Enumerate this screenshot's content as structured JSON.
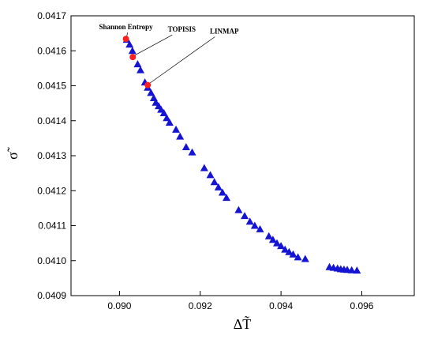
{
  "colors": {
    "marker": "#1414d2",
    "highlight": "#ff2020",
    "axis": "#000000"
  },
  "chart_data": {
    "type": "scatter",
    "title": "",
    "xlabel": "ΔT̃",
    "ylabel": "σ̃",
    "xlim": [
      0.0888,
      0.0973
    ],
    "ylim": [
      0.0409,
      0.0417
    ],
    "grid": false,
    "x_ticks": [
      0.09,
      0.092,
      0.094,
      0.096
    ],
    "x_tick_labels": [
      "0.090",
      "0.092",
      "0.094",
      "0.096"
    ],
    "y_ticks": [
      0.0409,
      0.041,
      0.0411,
      0.0412,
      0.0413,
      0.0414,
      0.0415,
      0.0416,
      0.0417
    ],
    "y_tick_labels": [
      "0.0409",
      "0.0410",
      "0.0411",
      "0.0412",
      "0.0413",
      "0.0414",
      "0.0415",
      "0.0416",
      "0.0417"
    ],
    "series": [
      {
        "marker": "triangle",
        "x": [
          0.09018,
          0.09025,
          0.09032,
          0.09045,
          0.09052,
          0.09063,
          0.0907,
          0.09078,
          0.09085,
          0.0909,
          0.09097,
          0.09103,
          0.0911,
          0.09117,
          0.09124,
          0.0914,
          0.0915,
          0.09165,
          0.0918,
          0.0921,
          0.09225,
          0.09235,
          0.09245,
          0.09255,
          0.09265,
          0.09295,
          0.0931,
          0.09323,
          0.09335,
          0.09348,
          0.0937,
          0.0938,
          0.0939,
          0.094,
          0.0941,
          0.0942,
          0.0943,
          0.09442,
          0.0946,
          0.0952,
          0.0953,
          0.0954,
          0.09548,
          0.09556,
          0.09564,
          0.09575,
          0.09588
        ],
        "y": [
          0.041632,
          0.041618,
          0.0416,
          0.041562,
          0.041545,
          0.04151,
          0.041495,
          0.04148,
          0.041465,
          0.041452,
          0.041442,
          0.041432,
          0.041422,
          0.041408,
          0.041395,
          0.041375,
          0.041355,
          0.041325,
          0.04131,
          0.041265,
          0.041245,
          0.041225,
          0.04121,
          0.041195,
          0.04118,
          0.041145,
          0.041128,
          0.041112,
          0.0411,
          0.04109,
          0.04107,
          0.04106,
          0.04105,
          0.041042,
          0.041032,
          0.041025,
          0.041018,
          0.04101,
          0.041005,
          0.040982,
          0.04098,
          0.040978,
          0.040976,
          0.040975,
          0.040974,
          0.040973,
          0.040972
        ]
      },
      {
        "marker": "circle",
        "x": [
          0.09016,
          0.09033,
          0.0907
        ],
        "y": [
          0.041634,
          0.041582,
          0.041502
        ]
      }
    ],
    "annotations": [
      {
        "text": "Shannon Entropy",
        "point_index": 0
      },
      {
        "text": "TOPISIS",
        "point_index": 1
      },
      {
        "text": "LINMAP",
        "point_index": 2
      }
    ]
  }
}
